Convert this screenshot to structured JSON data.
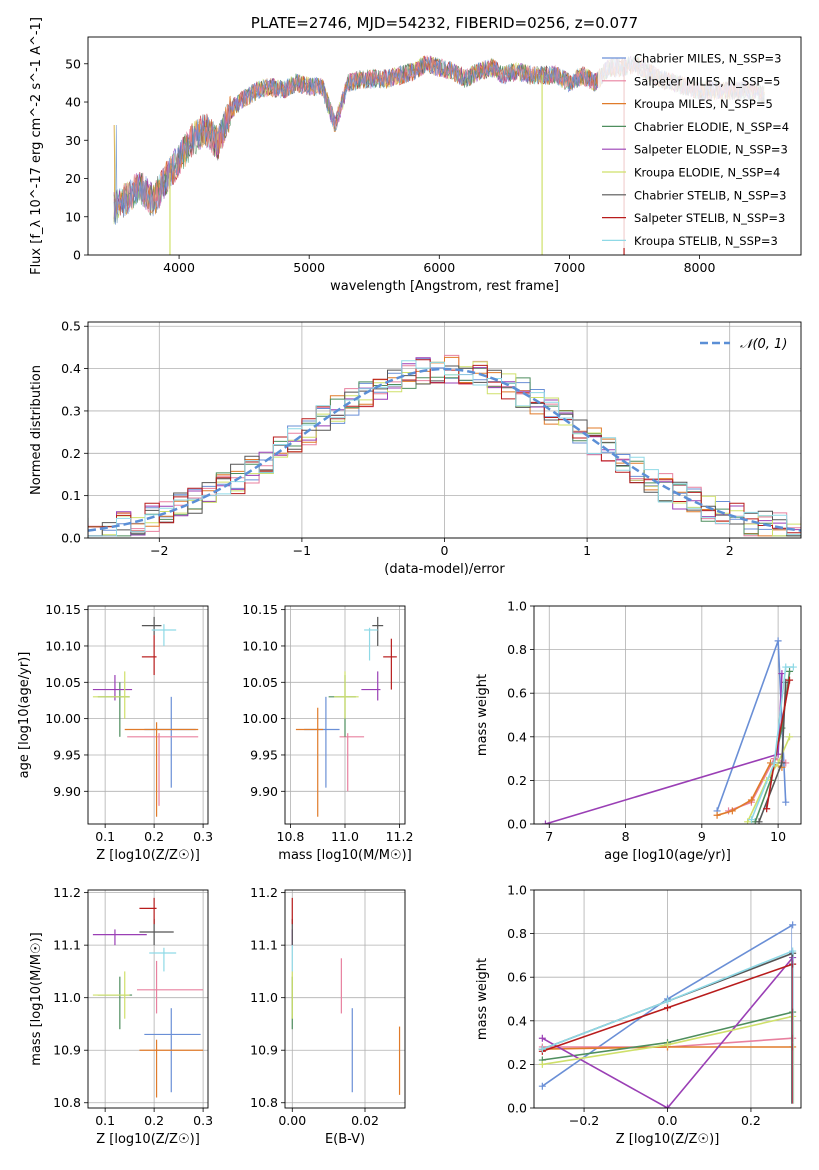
{
  "chart_data": [
    {
      "id": "spectrum",
      "type": "line",
      "title": "PLATE=2746, MJD=54232, FIBERID=0256, z=0.077",
      "xlabel": "wavelength [Angstrom, rest frame]",
      "ylabel": "Flux [f_λ 10^-17 erg cm^-2 s^-1 A^-1]",
      "xlim": [
        3300,
        8780
      ],
      "ylim": [
        0,
        57
      ],
      "xticks": [
        4000,
        5000,
        6000,
        7000,
        8000
      ],
      "yticks": [
        0,
        10,
        20,
        30,
        40,
        50
      ],
      "grid": false,
      "legend_position": "right",
      "series": [
        {
          "name": "Chabrier MILES, N_SSP=3",
          "color": "#6a8fd6"
        },
        {
          "name": "Salpeter MILES, N_SSP=5",
          "color": "#e8809f"
        },
        {
          "name": "Kroupa MILES, N_SSP=5",
          "color": "#e07b2a"
        },
        {
          "name": "Chabrier ELODIE, N_SSP=4",
          "color": "#4e8e5e"
        },
        {
          "name": "Salpeter ELODIE, N_SSP=3",
          "color": "#9a3fb5"
        },
        {
          "name": "Kroupa ELODIE, N_SSP=4",
          "color": "#cfe06a"
        },
        {
          "name": "Chabrier STELIB, N_SSP=3",
          "color": "#555555"
        },
        {
          "name": "Salpeter STELIB, N_SSP=3",
          "color": "#b81c1c"
        },
        {
          "name": "Kroupa STELIB, N_SSP=3",
          "color": "#8fd9e6"
        }
      ],
      "envelope": {
        "x": [
          3500,
          3600,
          3700,
          3800,
          3900,
          4000,
          4100,
          4200,
          4300,
          4400,
          4500,
          4600,
          4700,
          4800,
          4900,
          5000,
          5100,
          5200,
          5300,
          5400,
          5500,
          5600,
          5700,
          5800,
          5900,
          6000,
          6100,
          6200,
          6300,
          6400,
          6500,
          6600,
          6700,
          6800,
          6900,
          7000,
          7100,
          7200,
          7300,
          7400,
          7500,
          7600,
          7700,
          7800,
          7900,
          8000,
          8100,
          8200,
          8300,
          8400,
          8500
        ],
        "y": [
          12,
          15,
          18,
          14,
          20,
          25,
          30,
          33,
          29,
          38,
          41,
          43,
          44,
          43,
          45,
          44,
          44,
          34,
          45,
          46,
          46,
          46,
          47,
          48,
          50,
          49,
          48,
          46,
          48,
          49,
          47,
          48,
          47,
          47,
          47,
          45,
          47,
          45,
          49,
          49,
          50,
          48,
          46,
          45,
          44,
          43,
          43,
          43,
          43,
          43,
          42
        ]
      },
      "drops": [
        {
          "x": 3930,
          "color": "#cfe06a"
        },
        {
          "x": 6790,
          "color": "#cfe06a"
        },
        {
          "x": 7420,
          "color": "#b81c1c"
        }
      ]
    },
    {
      "id": "residuals",
      "type": "line",
      "xlabel": "(data-model)/error",
      "ylabel": "Normed distribution",
      "xlim": [
        -2.5,
        2.5
      ],
      "ylim": [
        0,
        0.51
      ],
      "xticks": [
        -2,
        -1,
        0,
        1,
        2
      ],
      "yticks": [
        0.0,
        0.1,
        0.2,
        0.3,
        0.4,
        0.5
      ],
      "grid": true,
      "legend_position": "top-right",
      "legend": "𝒩(0, 1)",
      "gaussian_color": "#5b8fd6",
      "bin_width": 0.1
    },
    {
      "id": "age_vs_Z",
      "type": "scatter",
      "xlabel": "Z [log10(Z/Z☉)]",
      "ylabel": "age [log10(age/yr)]",
      "xlim": [
        0.065,
        0.31
      ],
      "ylim": [
        9.855,
        10.155
      ],
      "xticks": [
        0.1,
        0.2,
        0.3
      ],
      "yticks": [
        9.9,
        9.95,
        10.0,
        10.05,
        10.1,
        10.15
      ],
      "grid": true,
      "points": [
        {
          "x": 0.235,
          "y": 9.985,
          "xerr": [
            0.18,
            0.285
          ],
          "yerr": [
            9.905,
            10.03
          ],
          "color": "#6a8fd6"
        },
        {
          "x": 0.21,
          "y": 9.975,
          "xerr": [
            0.145,
            0.29
          ],
          "yerr": [
            9.88,
            9.98
          ],
          "color": "#e8809f"
        },
        {
          "x": 0.205,
          "y": 9.985,
          "xerr": [
            0.14,
            0.29
          ],
          "yerr": [
            9.865,
            9.995
          ],
          "color": "#e07b2a"
        },
        {
          "x": 0.13,
          "y": 10.03,
          "xerr": [
            0.085,
            0.15
          ],
          "yerr": [
            9.975,
            10.05
          ],
          "color": "#4e8e5e"
        },
        {
          "x": 0.12,
          "y": 10.04,
          "xerr": [
            0.075,
            0.155
          ],
          "yerr": [
            10.025,
            10.06
          ],
          "color": "#9a3fb5"
        },
        {
          "x": 0.14,
          "y": 10.03,
          "xerr": [
            0.075,
            0.15
          ],
          "yerr": [
            10.0,
            10.065
          ],
          "color": "#cfe06a"
        },
        {
          "x": 0.2,
          "y": 10.128,
          "xerr": [
            0.175,
            0.215
          ],
          "yerr": [
            10.115,
            10.14
          ],
          "color": "#555555"
        },
        {
          "x": 0.2,
          "y": 10.085,
          "xerr": [
            0.175,
            0.205
          ],
          "yerr": [
            10.06,
            10.115
          ],
          "color": "#b81c1c"
        },
        {
          "x": 0.22,
          "y": 10.122,
          "xerr": [
            0.195,
            0.245
          ],
          "yerr": [
            10.1,
            10.13
          ],
          "color": "#8fd9e6"
        }
      ]
    },
    {
      "id": "age_vs_mass",
      "type": "scatter",
      "xlabel": "mass [log10(M/M☉)]",
      "ylabel": "",
      "xlim": [
        10.78,
        11.22
      ],
      "ylim": [
        9.855,
        10.155
      ],
      "xticks": [
        10.8,
        11.0,
        11.2
      ],
      "yticks": [
        9.9,
        9.95,
        10.0,
        10.05,
        10.1,
        10.15
      ],
      "grid": true,
      "points": [
        {
          "x": 10.93,
          "y": 9.985,
          "xerr": [
            10.85,
            10.98
          ],
          "yerr": [
            9.905,
            10.03
          ],
          "color": "#6a8fd6"
        },
        {
          "x": 11.01,
          "y": 9.975,
          "xerr": [
            10.98,
            11.07
          ],
          "yerr": [
            9.9,
            9.98
          ],
          "color": "#e8809f"
        },
        {
          "x": 10.9,
          "y": 9.985,
          "xerr": [
            10.82,
            10.92
          ],
          "yerr": [
            9.865,
            10.015
          ],
          "color": "#e07b2a"
        },
        {
          "x": 11.0,
          "y": 10.03,
          "xerr": [
            10.94,
            11.04
          ],
          "yerr": [
            9.975,
            10.06
          ],
          "color": "#4e8e5e"
        },
        {
          "x": 11.12,
          "y": 10.04,
          "xerr": [
            11.06,
            11.13
          ],
          "yerr": [
            10.025,
            10.065
          ],
          "color": "#9a3fb5"
        },
        {
          "x": 11.0,
          "y": 10.03,
          "xerr": [
            10.96,
            11.05
          ],
          "yerr": [
            10.0,
            10.065
          ],
          "color": "#cfe06a"
        },
        {
          "x": 11.12,
          "y": 10.128,
          "xerr": [
            11.1,
            11.14
          ],
          "yerr": [
            10.1,
            10.14
          ],
          "color": "#555555"
        },
        {
          "x": 11.17,
          "y": 10.085,
          "xerr": [
            11.14,
            11.19
          ],
          "yerr": [
            10.04,
            10.11
          ],
          "color": "#b81c1c"
        },
        {
          "x": 11.09,
          "y": 10.122,
          "xerr": [
            11.07,
            11.12
          ],
          "yerr": [
            10.08,
            10.125
          ],
          "color": "#8fd9e6"
        }
      ]
    },
    {
      "id": "massweight_vs_age",
      "type": "line",
      "xlabel": "age [log10(age/yr)]",
      "ylabel": "mass weight",
      "xlim": [
        6.8,
        10.3
      ],
      "ylim": [
        0,
        1.0
      ],
      "xticks": [
        7,
        8,
        9,
        10
      ],
      "yticks": [
        0.0,
        0.2,
        0.4,
        0.6,
        0.8,
        1.0
      ],
      "grid": true,
      "series": [
        {
          "name": "Chabrier MILES",
          "color": "#6a8fd6",
          "x": [
            9.2,
            10.0,
            10.1
          ],
          "y": [
            0.06,
            0.84,
            0.1
          ]
        },
        {
          "name": "Salpeter MILES",
          "color": "#e8809f",
          "x": [
            9.35,
            9.65,
            9.95,
            10.1
          ],
          "y": [
            0.06,
            0.1,
            0.3,
            0.28
          ]
        },
        {
          "name": "Kroupa MILES",
          "color": "#e07b2a",
          "x": [
            9.2,
            9.4,
            9.65,
            9.9,
            10.05
          ],
          "y": [
            0.04,
            0.06,
            0.11,
            0.28,
            0.26
          ]
        },
        {
          "name": "Chabrier ELODIE",
          "color": "#4e8e5e",
          "x": [
            9.7,
            9.9,
            10.05,
            10.15
          ],
          "y": [
            0.01,
            0.2,
            0.44,
            0.7
          ]
        },
        {
          "name": "Salpeter ELODIE",
          "color": "#9a3fb5",
          "x": [
            6.95,
            10.0,
            10.05
          ],
          "y": [
            0.0,
            0.32,
            0.69
          ]
        },
        {
          "name": "Kroupa ELODIE",
          "color": "#cfe06a",
          "x": [
            9.6,
            9.85,
            10.0,
            10.15
          ],
          "y": [
            0.01,
            0.2,
            0.28,
            0.4
          ]
        },
        {
          "name": "Chabrier STELIB",
          "color": "#555555",
          "x": [
            9.75,
            10.05,
            10.1
          ],
          "y": [
            0.01,
            0.28,
            0.65
          ]
        },
        {
          "name": "Salpeter STELIB",
          "color": "#b81c1c",
          "x": [
            9.85,
            9.95,
            10.15
          ],
          "y": [
            0.07,
            0.28,
            0.66
          ]
        },
        {
          "name": "Kroupa STELIB",
          "color": "#8fd9e6",
          "x": [
            9.65,
            9.95,
            10.1,
            10.2
          ],
          "y": [
            0.02,
            0.28,
            0.72,
            0.72
          ]
        }
      ]
    },
    {
      "id": "mass_vs_Z",
      "type": "scatter",
      "xlabel": "Z [log10(Z/Z☉)]",
      "ylabel": "mass [log10(M/M☉)]",
      "xlim": [
        0.065,
        0.31
      ],
      "ylim": [
        10.79,
        11.205
      ],
      "xticks": [
        0.1,
        0.2,
        0.3
      ],
      "yticks": [
        10.8,
        10.9,
        11.0,
        11.1,
        11.2
      ],
      "grid": true,
      "points": [
        {
          "x": 0.235,
          "y": 10.93,
          "xerr": [
            0.18,
            0.295
          ],
          "yerr": [
            10.82,
            10.98
          ],
          "color": "#6a8fd6"
        },
        {
          "x": 0.205,
          "y": 11.015,
          "xerr": [
            0.165,
            0.3
          ],
          "yerr": [
            10.97,
            11.07
          ],
          "color": "#e8809f"
        },
        {
          "x": 0.205,
          "y": 10.9,
          "xerr": [
            0.17,
            0.3
          ],
          "yerr": [
            10.81,
            10.92
          ],
          "color": "#e07b2a"
        },
        {
          "x": 0.13,
          "y": 11.005,
          "xerr": [
            0.085,
            0.155
          ],
          "yerr": [
            10.94,
            11.04
          ],
          "color": "#4e8e5e"
        },
        {
          "x": 0.12,
          "y": 11.12,
          "xerr": [
            0.075,
            0.185
          ],
          "yerr": [
            11.1,
            11.13
          ],
          "color": "#9a3fb5"
        },
        {
          "x": 0.14,
          "y": 11.005,
          "xerr": [
            0.075,
            0.15
          ],
          "yerr": [
            10.96,
            11.05
          ],
          "color": "#cfe06a"
        },
        {
          "x": 0.2,
          "y": 11.125,
          "xerr": [
            0.17,
            0.24
          ],
          "yerr": [
            11.1,
            11.15
          ],
          "color": "#555555"
        },
        {
          "x": 0.2,
          "y": 11.17,
          "xerr": [
            0.17,
            0.205
          ],
          "yerr": [
            11.14,
            11.19
          ],
          "color": "#b81c1c"
        },
        {
          "x": 0.22,
          "y": 11.085,
          "xerr": [
            0.19,
            0.245
          ],
          "yerr": [
            11.05,
            11.095
          ],
          "color": "#8fd9e6"
        }
      ]
    },
    {
      "id": "mass_vs_ebv",
      "type": "scatter",
      "xlabel": "E(B-V)",
      "ylabel": "",
      "xlim": [
        -0.002,
        0.031
      ],
      "ylim": [
        10.79,
        11.205
      ],
      "xticks": [
        0.0,
        0.02
      ],
      "yticks": [
        10.8,
        10.9,
        11.0,
        11.1,
        11.2
      ],
      "grid": true,
      "points": [
        {
          "x": 0.0165,
          "y": 10.93,
          "yerr": [
            10.82,
            10.98
          ],
          "color": "#6a8fd6"
        },
        {
          "x": 0.0135,
          "y": 11.015,
          "yerr": [
            10.97,
            11.075
          ],
          "color": "#e8809f"
        },
        {
          "x": 0.0295,
          "y": 10.9,
          "yerr": [
            10.815,
            10.945
          ],
          "color": "#e07b2a"
        },
        {
          "x": 0.0,
          "y": 11.0,
          "yerr": [
            10.94,
            11.04
          ],
          "color": "#4e8e5e"
        },
        {
          "x": 0.0,
          "y": 11.12,
          "yerr": [
            11.1,
            11.13
          ],
          "color": "#9a3fb5"
        },
        {
          "x": 0.0,
          "y": 11.0,
          "yerr": [
            10.96,
            11.05
          ],
          "color": "#cfe06a"
        },
        {
          "x": 0.0,
          "y": 11.125,
          "yerr": [
            11.1,
            11.15
          ],
          "color": "#555555"
        },
        {
          "x": 0.0,
          "y": 11.17,
          "yerr": [
            11.14,
            11.19
          ],
          "color": "#b81c1c"
        },
        {
          "x": 0.0,
          "y": 11.085,
          "yerr": [
            11.05,
            11.1
          ],
          "color": "#8fd9e6"
        }
      ]
    },
    {
      "id": "massweight_vs_Z",
      "type": "line",
      "xlabel": "Z [log10(Z/Z☉)]",
      "ylabel": "mass weight",
      "xlim": [
        -0.32,
        0.32
      ],
      "ylim": [
        0,
        1.0
      ],
      "xticks": [
        -0.2,
        0.0,
        0.2
      ],
      "yticks": [
        0.0,
        0.2,
        0.4,
        0.6,
        0.8,
        1.0
      ],
      "grid": true,
      "series": [
        {
          "name": "Chabrier MILES",
          "color": "#6a8fd6",
          "x": [
            -0.3,
            0.0,
            0.3
          ],
          "y": [
            0.1,
            0.5,
            0.84
          ]
        },
        {
          "name": "Salpeter MILES",
          "color": "#e8809f",
          "x": [
            -0.3,
            0.0,
            0.3
          ],
          "y": [
            0.28,
            0.28,
            0.32
          ]
        },
        {
          "name": "Kroupa MILES",
          "color": "#e07b2a",
          "x": [
            -0.3,
            0.0,
            0.3
          ],
          "y": [
            0.27,
            0.28,
            0.28
          ]
        },
        {
          "name": "Chabrier ELODIE",
          "color": "#4e8e5e",
          "x": [
            -0.3,
            0.0,
            0.3
          ],
          "y": [
            0.22,
            0.3,
            0.44
          ]
        },
        {
          "name": "Salpeter ELODIE",
          "color": "#9a3fb5",
          "x": [
            -0.3,
            0.0,
            0.3
          ],
          "y": [
            0.32,
            0.0,
            0.69
          ]
        },
        {
          "name": "Kroupa ELODIE",
          "color": "#cfe06a",
          "x": [
            -0.3,
            0.0,
            0.3
          ],
          "y": [
            0.2,
            0.29,
            0.42
          ]
        },
        {
          "name": "Chabrier STELIB",
          "color": "#555555",
          "x": [
            -0.3,
            0.0,
            0.3
          ],
          "y": [
            0.27,
            0.49,
            0.71
          ]
        },
        {
          "name": "Salpeter STELIB",
          "color": "#b81c1c",
          "x": [
            -0.3,
            0.0,
            0.3
          ],
          "y": [
            0.26,
            0.46,
            0.66
          ]
        },
        {
          "name": "Kroupa STELIB",
          "color": "#8fd9e6",
          "x": [
            -0.3,
            0.0,
            0.3
          ],
          "y": [
            0.27,
            0.49,
            0.72
          ]
        }
      ]
    }
  ]
}
